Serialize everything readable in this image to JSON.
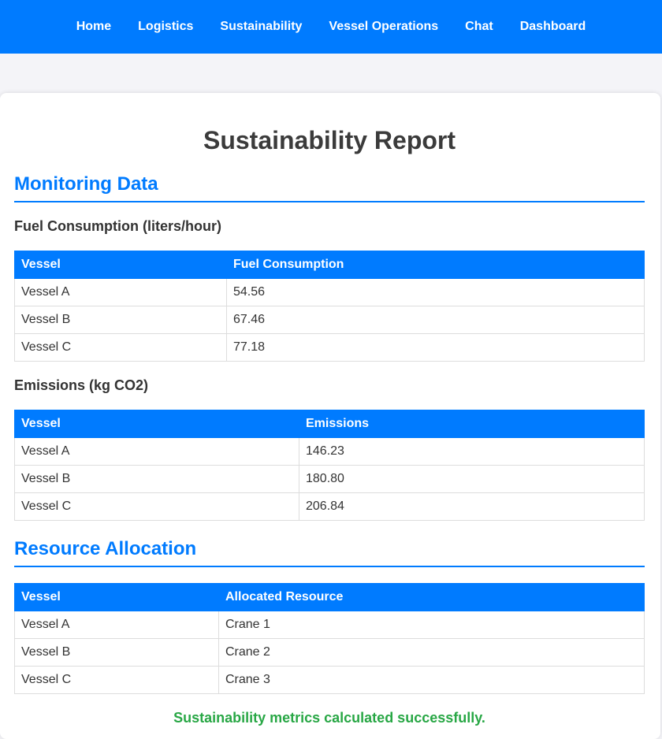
{
  "nav": {
    "items": [
      "Home",
      "Logistics",
      "Sustainability",
      "Vessel Operations",
      "Chat",
      "Dashboard"
    ]
  },
  "page": {
    "title": "Sustainability Report"
  },
  "monitoring": {
    "heading": "Monitoring Data",
    "fuel": {
      "heading": "Fuel Consumption (liters/hour)",
      "columns": [
        "Vessel",
        "Fuel Consumption"
      ],
      "rows": [
        [
          "Vessel A",
          "54.56"
        ],
        [
          "Vessel B",
          "67.46"
        ],
        [
          "Vessel C",
          "77.18"
        ]
      ]
    },
    "emissions": {
      "heading": "Emissions (kg CO2)",
      "columns": [
        "Vessel",
        "Emissions"
      ],
      "rows": [
        [
          "Vessel A",
          "146.23"
        ],
        [
          "Vessel B",
          "180.80"
        ],
        [
          "Vessel C",
          "206.84"
        ]
      ]
    }
  },
  "resources": {
    "heading": "Resource Allocation",
    "columns": [
      "Vessel",
      "Allocated Resource"
    ],
    "rows": [
      [
        "Vessel A",
        "Crane 1"
      ],
      [
        "Vessel B",
        "Crane 2"
      ],
      [
        "Vessel C",
        "Crane 3"
      ]
    ]
  },
  "status": {
    "message": "Sustainability metrics calculated successfully.",
    "color": "#28a745"
  },
  "colors": {
    "accent": "#007bff"
  }
}
